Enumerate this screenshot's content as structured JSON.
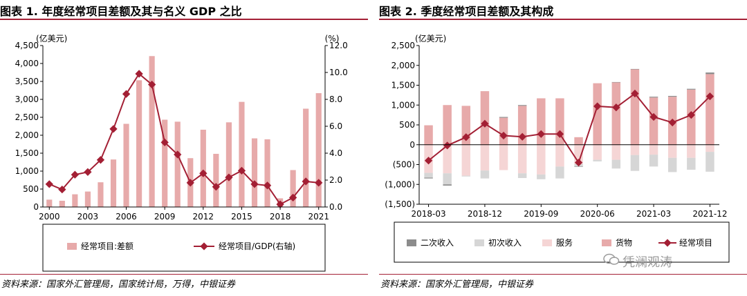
{
  "colors": {
    "bar": "#e7aaaa",
    "line": "#a31f34",
    "axis": "#000000"
  },
  "chart_data": [
    {
      "type": "bar+line",
      "title": "图表 1. 年度经常项目差额及其与名义 GDP 之比",
      "y_left_unit": "(亿美元)",
      "y_right_unit": "(%)",
      "ylim_left": [
        0,
        4500
      ],
      "ylim_right": [
        0,
        12
      ],
      "y_left_ticks": [
        "0",
        "500",
        "1,000",
        "1,500",
        "2,000",
        "2,500",
        "3,000",
        "3,500",
        "4,000",
        "4,500"
      ],
      "y_right_ticks": [
        "0.0",
        "2.0",
        "4.0",
        "6.0",
        "8.0",
        "10.0",
        "12.0"
      ],
      "x_ticks": [
        "2000",
        "2003",
        "2006",
        "2009",
        "2012",
        "2015",
        "2018",
        "2021"
      ],
      "years": [
        2000,
        2001,
        2002,
        2003,
        2004,
        2005,
        2006,
        2007,
        2008,
        2009,
        2010,
        2011,
        2012,
        2013,
        2014,
        2015,
        2016,
        2017,
        2018,
        2019,
        2020,
        2021
      ],
      "series": [
        {
          "name": "经常项目:差额",
          "kind": "bar",
          "axis": "left",
          "values": [
            205,
            174,
            354,
            431,
            689,
            1324,
            2318,
            3532,
            4206,
            2433,
            2378,
            1361,
            2154,
            1482,
            2360,
            2930,
            1913,
            1887,
            241,
            1029,
            2740,
            3173
          ]
        },
        {
          "name": "经常项目/GDP(右轴)",
          "kind": "line",
          "axis": "right",
          "values": [
            1.7,
            1.3,
            2.4,
            2.6,
            3.5,
            5.8,
            8.4,
            9.9,
            9.1,
            4.8,
            3.9,
            1.8,
            2.5,
            1.5,
            2.2,
            2.7,
            1.7,
            1.6,
            0.2,
            0.7,
            1.9,
            1.8
          ]
        }
      ],
      "legend_position": "bottom"
    },
    {
      "type": "stacked-bar+line",
      "title": "图表 2. 季度经常项目差额及其构成",
      "y_unit": "(亿美元)",
      "ylim": [
        -1500,
        2500
      ],
      "y_ticks": [
        "(1,500)",
        "(1,000)",
        "(500)",
        "0",
        "500",
        "1,000",
        "1,500",
        "2,000",
        "2,500"
      ],
      "x_ticks": [
        "2018-03",
        "2018-12",
        "2019-09",
        "2020-06",
        "2021-03",
        "2021-12"
      ],
      "quarters": [
        "2018-03",
        "2018-06",
        "2018-09",
        "2018-12",
        "2019-03",
        "2019-06",
        "2019-09",
        "2019-12",
        "2020-03",
        "2020-06",
        "2020-09",
        "2020-12",
        "2021-03",
        "2021-06",
        "2021-09",
        "2021-12"
      ],
      "series": [
        {
          "name": "二次收入",
          "kind": "bar",
          "values": [
            -20,
            -30,
            0,
            0,
            20,
            20,
            0,
            0,
            -10,
            0,
            10,
            10,
            20,
            20,
            20,
            40
          ]
        },
        {
          "name": "初次收入",
          "kind": "bar",
          "values": [
            -120,
            -280,
            -20,
            -200,
            0,
            -120,
            -120,
            -300,
            -60,
            -40,
            -220,
            -400,
            -300,
            -360,
            -300,
            -500
          ]
        },
        {
          "name": "服务",
          "kind": "bar",
          "values": [
            -710,
            -720,
            -780,
            -650,
            -640,
            -720,
            -750,
            -550,
            -490,
            -380,
            -380,
            -260,
            -250,
            -330,
            -330,
            -180
          ]
        },
        {
          "name": "货物",
          "kind": "bar",
          "values": [
            490,
            1000,
            980,
            1350,
            680,
            980,
            1170,
            1170,
            190,
            1550,
            1570,
            1900,
            1190,
            1210,
            1390,
            1780
          ]
        },
        {
          "name": "经常项目",
          "kind": "line",
          "values": [
            -400,
            -20,
            190,
            530,
            230,
            200,
            270,
            270,
            -450,
            970,
            940,
            1290,
            700,
            560,
            750,
            1220
          ]
        }
      ],
      "legend_position": "bottom"
    }
  ],
  "sources": {
    "left": "资料来源：国家外汇管理局，国家统计局，万得，中银证券",
    "right": "资料来源：国家外汇管理局，中银证券"
  },
  "watermark": "凭澜观涛"
}
